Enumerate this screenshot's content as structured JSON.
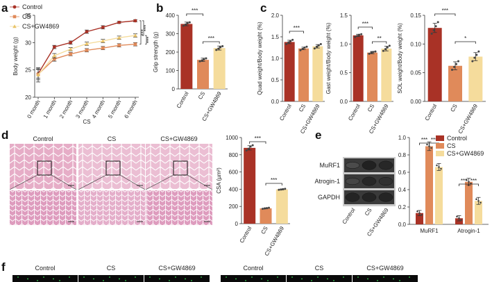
{
  "colors": {
    "control": "#a93226",
    "cs": "#e08a5a",
    "gw": "#f5dc9c",
    "dot": "#444444",
    "micro_pink": "#e5a9c4",
    "micro_dark": "#b15c8c",
    "blot_bg": "#3a3a3a",
    "fluor_bg": "#0a0a0a",
    "fluor_dot": "#39d353"
  },
  "panel_labels": [
    "a",
    "b",
    "c",
    "d",
    "e",
    "f"
  ],
  "chart_data": [
    {
      "id": "a",
      "type": "line",
      "xlabel": "CS",
      "ylabel": "Body weight (g)",
      "categories": [
        "0 month",
        "1 month",
        "2 month",
        "3 month",
        "4 month",
        "5 month",
        "6 month"
      ],
      "ylim": [
        20,
        35
      ],
      "yticks": [
        20,
        25,
        30,
        35
      ],
      "series": [
        {
          "name": "Control",
          "values": [
            24.3,
            29.2,
            30.0,
            32.0,
            32.8,
            33.7,
            34.0
          ],
          "errors": [
            0.8,
            0.3,
            0.3,
            0.3,
            0.3,
            0.2,
            0.2
          ]
        },
        {
          "name": "CS",
          "values": [
            24.2,
            27.0,
            27.9,
            28.6,
            29.0,
            29.5,
            29.7
          ],
          "errors": [
            1.0,
            0.4,
            0.3,
            0.3,
            0.3,
            0.3,
            0.3
          ]
        },
        {
          "name": "CS+GW4869",
          "values": [
            24.1,
            27.6,
            28.8,
            29.8,
            30.3,
            30.9,
            31.3
          ],
          "errors": [
            1.3,
            0.4,
            0.3,
            0.3,
            0.3,
            0.3,
            0.3
          ]
        }
      ],
      "significance": [
        "***",
        "***",
        "***"
      ]
    },
    {
      "id": "b",
      "type": "bar",
      "ylabel": "Grip strength (g)",
      "categories": [
        "Control",
        "CS",
        "CS+GW4869"
      ],
      "values": [
        353,
        158,
        222
      ],
      "errors": [
        10,
        9,
        11
      ],
      "points": [
        [
          343,
          350,
          357,
          362
        ],
        [
          150,
          155,
          160,
          166
        ],
        [
          212,
          219,
          226,
          232
        ]
      ],
      "ylim": [
        0,
        400
      ],
      "yticks": [
        0,
        100,
        200,
        300,
        400
      ],
      "significance": [
        "***",
        "***"
      ]
    },
    {
      "id": "c1",
      "type": "bar",
      "ylabel": "Quad weight/Body weight (%)",
      "categories": [
        "Control",
        "CS",
        "CS+GW4869"
      ],
      "values": [
        1.38,
        1.23,
        1.28
      ],
      "errors": [
        0.04,
        0.03,
        0.04
      ],
      "points": [
        [
          1.33,
          1.37,
          1.4,
          1.43
        ],
        [
          1.19,
          1.22,
          1.25,
          1.27
        ],
        [
          1.23,
          1.27,
          1.3,
          1.33
        ]
      ],
      "ylim": [
        0,
        2.0
      ],
      "yticks": [
        0.0,
        0.5,
        1.0,
        1.5,
        2.0
      ],
      "significance": [
        "***"
      ]
    },
    {
      "id": "c2",
      "type": "bar",
      "ylabel": "Gast weight/Body weight (%)",
      "categories": [
        "Control",
        "CS",
        "CS+GW4869"
      ],
      "values": [
        1.15,
        0.85,
        0.92
      ],
      "errors": [
        0.02,
        0.02,
        0.04
      ],
      "points": [
        [
          1.12,
          1.14,
          1.16,
          1.17
        ],
        [
          0.83,
          0.85,
          0.86,
          0.87
        ],
        [
          0.88,
          0.91,
          0.94,
          0.97
        ]
      ],
      "ylim": [
        0,
        1.5
      ],
      "yticks": [
        0.0,
        0.5,
        1.0,
        1.5
      ],
      "significance": [
        "***",
        "**"
      ]
    },
    {
      "id": "c3",
      "type": "bar",
      "ylabel": "SOL weight/Body weight (%)",
      "categories": [
        "Control",
        "CS",
        "CS+GW4869"
      ],
      "values": [
        0.128,
        0.062,
        0.078
      ],
      "errors": [
        0.008,
        0.007,
        0.007
      ],
      "points": [
        [
          0.118,
          0.124,
          0.131,
          0.138
        ],
        [
          0.055,
          0.06,
          0.065,
          0.07
        ],
        [
          0.07,
          0.076,
          0.081,
          0.087
        ]
      ],
      "ylim": [
        0,
        0.15
      ],
      "yticks": [
        0.0,
        0.05,
        0.1,
        0.15
      ],
      "significance": [
        "***",
        "*"
      ]
    },
    {
      "id": "d",
      "type": "bar",
      "ylabel": "CSA (µm²)",
      "categories": [
        "Control",
        "CS",
        "CS+GW4869"
      ],
      "values": [
        880,
        178,
        398
      ],
      "errors": [
        25,
        6,
        6
      ],
      "points": [
        [
          850,
          870,
          895,
          910
        ],
        [
          172,
          176,
          180,
          184
        ],
        [
          393,
          396,
          400,
          404
        ]
      ],
      "ylim": [
        0,
        1000
      ],
      "yticks": [
        0,
        200,
        400,
        600,
        800,
        1000
      ],
      "significance": [
        "***",
        "***"
      ]
    },
    {
      "id": "e",
      "type": "bar",
      "ylabel": "Proteins/GAPDH",
      "categories": [
        "MuRF1",
        "Atrogin-1"
      ],
      "series": [
        {
          "name": "Control",
          "values": [
            0.13,
            0.07
          ],
          "errors": [
            0.03,
            0.03
          ]
        },
        {
          "name": "CS",
          "values": [
            0.9,
            0.49
          ],
          "errors": [
            0.05,
            0.04
          ]
        },
        {
          "name": "CS+GW4869",
          "values": [
            0.66,
            0.27
          ],
          "errors": [
            0.04,
            0.04
          ]
        }
      ],
      "ylim": [
        0,
        1.0
      ],
      "yticks": [
        0.0,
        0.2,
        0.4,
        0.6,
        0.8,
        1.0
      ],
      "significance": [
        "***",
        "***",
        "***",
        "***"
      ],
      "legend": "top-right"
    }
  ],
  "micrographs": {
    "labels": [
      "Control",
      "CS",
      "CS+GW4869"
    ]
  },
  "blot": {
    "rows": [
      "MuRF1",
      "Atrogin-1",
      "GAPDH"
    ],
    "lanes": [
      "Control",
      "CS",
      "CS+GW4869"
    ],
    "intensity": [
      [
        0.25,
        0.95,
        0.85
      ],
      [
        0.35,
        0.85,
        0.7
      ],
      [
        0.9,
        0.9,
        0.9
      ]
    ]
  },
  "fluor": {
    "labels": [
      "Control",
      "CS",
      "CS+GW4869",
      "Control",
      "CS",
      "CS+GW4869"
    ]
  }
}
